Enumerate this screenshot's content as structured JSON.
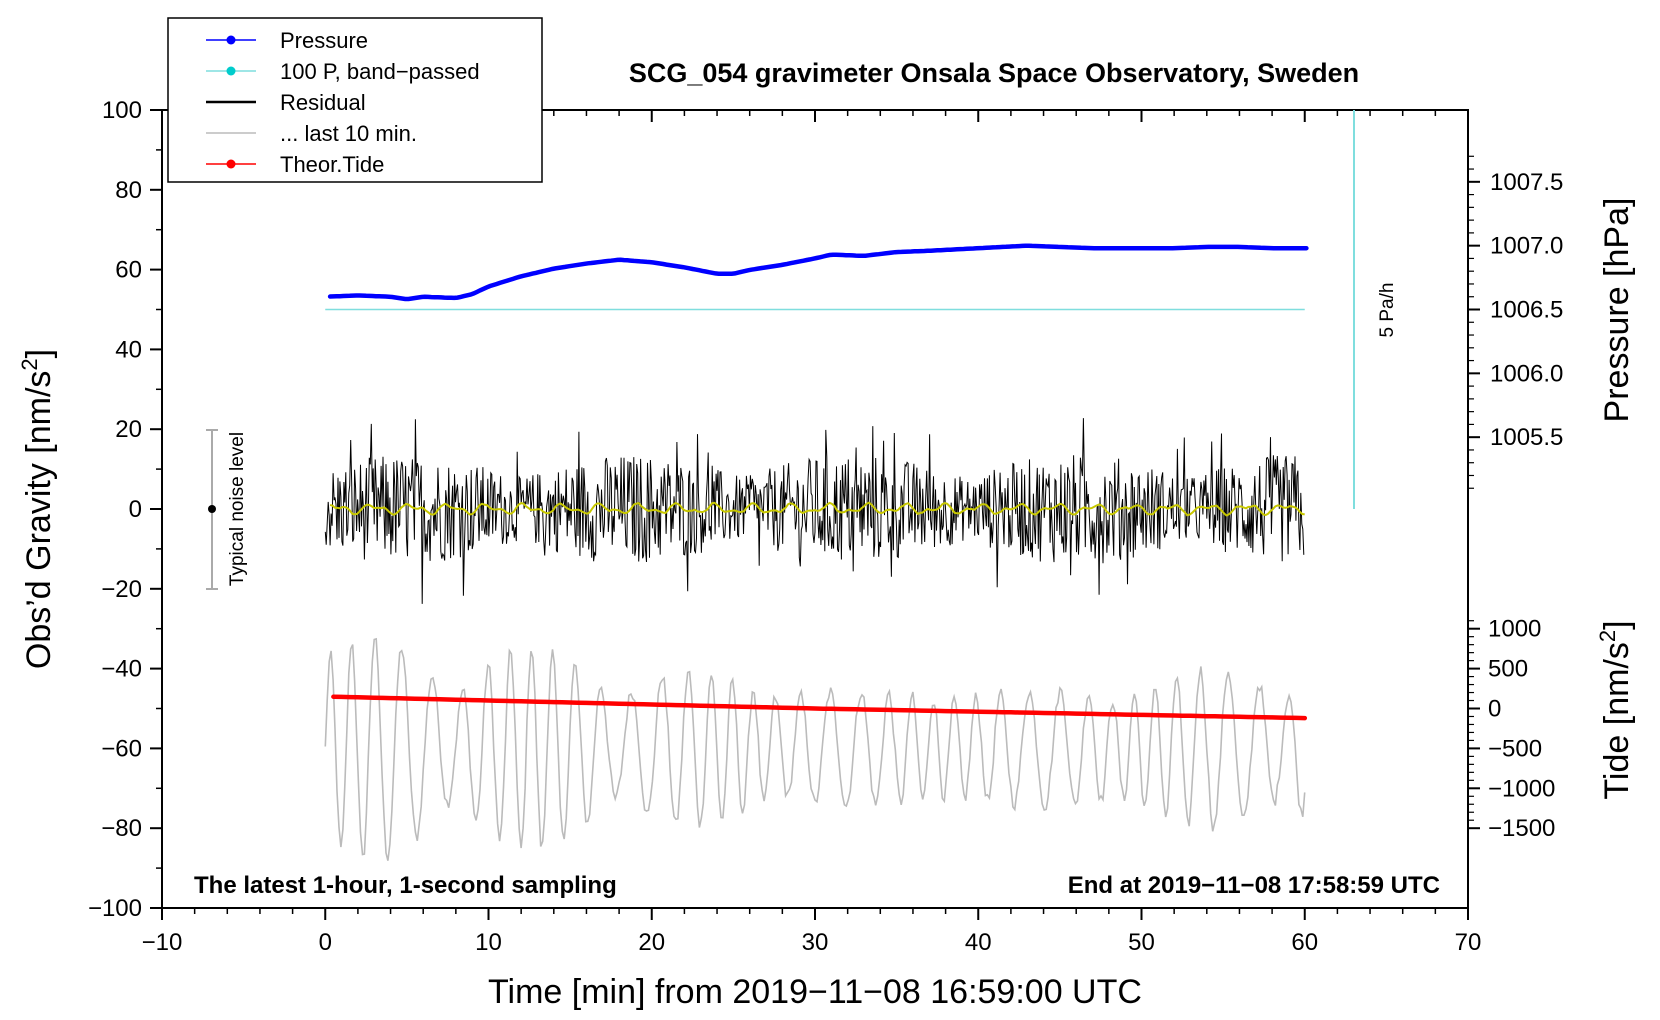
{
  "chart_data": {
    "type": "line",
    "title": "SCG_054 gravimeter Onsala Space Observatory, Sweden",
    "xlabel": "Time [min] from 2019−11−08 16:59:00 UTC",
    "ylabel_left": "Obs’d Gravity [nm/s",
    "ylabel_left_sup": "2",
    "ylabel_left_close": "]",
    "ylabel_right_top": "Pressure [hPa]",
    "ylabel_right_bottom": "Tide [nm/s",
    "ylabel_right_bottom_sup": "2",
    "ylabel_right_bottom_close": "]",
    "xlim": [
      -10,
      70
    ],
    "ylim": [
      -100,
      100
    ],
    "x_ticks": [
      -10,
      0,
      10,
      20,
      30,
      40,
      50,
      60,
      70
    ],
    "x_tick_labels": [
      "−10",
      "0",
      "10",
      "20",
      "30",
      "40",
      "50",
      "60",
      "70"
    ],
    "y_ticks": [
      -100,
      -80,
      -60,
      -40,
      -20,
      0,
      20,
      40,
      60,
      80,
      100
    ],
    "y_tick_labels": [
      "−100",
      "−80",
      "−60",
      "−40",
      "−20",
      "0",
      "20",
      "40",
      "60",
      "80",
      "100"
    ],
    "pressure_ticks": [
      1005.5,
      1006.0,
      1006.5,
      1007.0,
      1007.5
    ],
    "pressure_tick_labels": [
      "1005.5",
      "1006.0",
      "1006.5",
      "1007.0",
      "1007.5"
    ],
    "pressure_ref": {
      "value": 1006.5,
      "y_left": 50,
      "left_per_hpa": 32
    },
    "tide_ticks": [
      -1500,
      -1000,
      -500,
      0,
      500,
      1000
    ],
    "tide_tick_labels": [
      "−1500",
      "−1000",
      "−500",
      "0",
      "500",
      "1000"
    ],
    "tide_ref": {
      "value": 0,
      "y_left": -50,
      "left_per_unit": 0.02
    },
    "legend": [
      {
        "label": "Pressure",
        "color": "#0000ff",
        "marker": true
      },
      {
        "label": "100 P, band−passed",
        "color": "#00cccc",
        "marker": true
      },
      {
        "label": "Residual",
        "color": "#000000",
        "marker": false
      },
      {
        "label": "... last 10 min.",
        "color": "#bbbbbb",
        "marker": false
      },
      {
        "label": "Theor.Tide",
        "color": "#ff0000",
        "marker": true
      }
    ],
    "annotations": {
      "noise_label": "Typical noise level",
      "noise_bar": [
        -20,
        20
      ],
      "rate_label": "5 Pa/h",
      "rate_bar_x": 63,
      "rate_bar_y": [
        0,
        100
      ],
      "left_note": "The latest 1-hour, 1-second sampling",
      "right_note": "End at 2019−11−08 17:58:59 UTC"
    },
    "series": [
      {
        "name": "Pressure",
        "color": "#0000ff",
        "x": [
          0,
          2,
          4,
          5,
          6,
          8,
          9,
          10,
          12,
          14,
          16,
          18,
          19,
          20,
          22,
          24,
          25,
          26,
          28,
          30,
          31,
          33,
          35,
          37,
          40,
          43,
          45,
          47,
          50,
          52,
          54,
          56,
          58,
          60
        ],
        "y": [
          1006.6,
          1006.61,
          1006.6,
          1006.58,
          1006.6,
          1006.59,
          1006.62,
          1006.68,
          1006.76,
          1006.82,
          1006.86,
          1006.89,
          1006.88,
          1006.87,
          1006.83,
          1006.78,
          1006.78,
          1006.81,
          1006.85,
          1006.9,
          1006.93,
          1006.92,
          1006.95,
          1006.96,
          1006.98,
          1007.0,
          1006.99,
          1006.98,
          1006.98,
          1006.98,
          1006.99,
          1006.99,
          1006.98,
          1006.98
        ]
      },
      {
        "name": "100 P, band-passed",
        "color": "#00cccc",
        "x": [
          0,
          60
        ],
        "y": [
          50,
          50
        ]
      },
      {
        "name": "Theor.Tide",
        "color": "#ff0000",
        "x": [
          0,
          10,
          20,
          30,
          40,
          50,
          60
        ],
        "y": [
          150,
          100,
          50,
          0,
          -40,
          -80,
          -120
        ]
      },
      {
        "name": "Residual",
        "color": "#000000",
        "x_range": [
          0,
          60
        ],
        "envelope": [
          -30,
          30
        ]
      },
      {
        "name": "Residual smoothed",
        "color": "#c8c800",
        "x_range": [
          0,
          60
        ],
        "envelope": [
          -2,
          2
        ]
      },
      {
        "name": "... last 10 min.",
        "color": "#bbbbbb",
        "x_range": [
          0,
          60
        ],
        "center": -60,
        "envelope": [
          -90,
          -30
        ]
      }
    ]
  }
}
